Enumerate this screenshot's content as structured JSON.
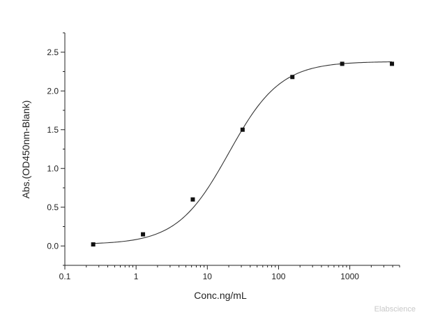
{
  "chart_data": {
    "type": "scatter",
    "xlabel": "Conc.ng/mL",
    "ylabel": "Abs.(OD450nm-Blank)",
    "x_scale": "log",
    "xlim": [
      0.1,
      5000
    ],
    "ylim": [
      -0.25,
      2.75
    ],
    "x_ticks": [
      {
        "value": 0.1,
        "label": "0.1"
      },
      {
        "value": 1,
        "label": "1"
      },
      {
        "value": 10,
        "label": "10"
      },
      {
        "value": 100,
        "label": "100"
      },
      {
        "value": 1000,
        "label": "1000"
      }
    ],
    "y_ticks": [
      {
        "value": 0.0,
        "label": "0.0"
      },
      {
        "value": 0.5,
        "label": "0.5"
      },
      {
        "value": 1.0,
        "label": "1.0"
      },
      {
        "value": 1.5,
        "label": "1.5"
      },
      {
        "value": 2.0,
        "label": "2.0"
      },
      {
        "value": 2.5,
        "label": "2.5"
      }
    ],
    "grid": false,
    "points": [
      {
        "x": 0.25,
        "y": 0.02
      },
      {
        "x": 1.25,
        "y": 0.15
      },
      {
        "x": 6.25,
        "y": 0.6
      },
      {
        "x": 31.25,
        "y": 1.5
      },
      {
        "x": 156.25,
        "y": 2.18
      },
      {
        "x": 781.25,
        "y": 2.35
      },
      {
        "x": 3906.25,
        "y": 2.35
      }
    ],
    "fit": {
      "model": "4PL",
      "bottom": 0.02,
      "top": 2.38,
      "ec50": 20,
      "hill": 1.2
    },
    "colors": {
      "marker": "#111111",
      "line": "#333333",
      "axis": "#222222"
    }
  },
  "watermark": "Elabscience"
}
